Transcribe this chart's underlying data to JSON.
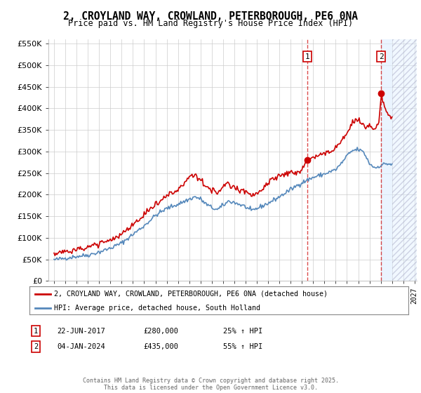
{
  "title": "2, CROYLAND WAY, CROWLAND, PETERBOROUGH, PE6 0NA",
  "subtitle": "Price paid vs. HM Land Registry's House Price Index (HPI)",
  "legend_line1": "2, CROYLAND WAY, CROWLAND, PETERBOROUGH, PE6 0NA (detached house)",
  "legend_line2": "HPI: Average price, detached house, South Holland",
  "annotation1_date": "22-JUN-2017",
  "annotation1_price": "£280,000",
  "annotation1_hpi": "25% ↑ HPI",
  "annotation2_date": "04-JAN-2024",
  "annotation2_price": "£435,000",
  "annotation2_hpi": "55% ↑ HPI",
  "footer": "Contains HM Land Registry data © Crown copyright and database right 2025.\nThis data is licensed under the Open Government Licence v3.0.",
  "vline1_x": 2017.47,
  "vline2_x": 2024.04,
  "sale1_x": 2017.47,
  "sale1_y": 280000,
  "sale2_x": 2024.04,
  "sale2_y": 435000,
  "red_color": "#cc0000",
  "blue_color": "#5588bb",
  "background_plot": "#ffffff",
  "ylim": [
    0,
    560000
  ],
  "xlim_start": 1994.5,
  "xlim_end": 2027.2,
  "future_start": 2025.0,
  "yticks": [
    0,
    50000,
    100000,
    150000,
    200000,
    250000,
    300000,
    350000,
    400000,
    450000,
    500000,
    550000
  ]
}
